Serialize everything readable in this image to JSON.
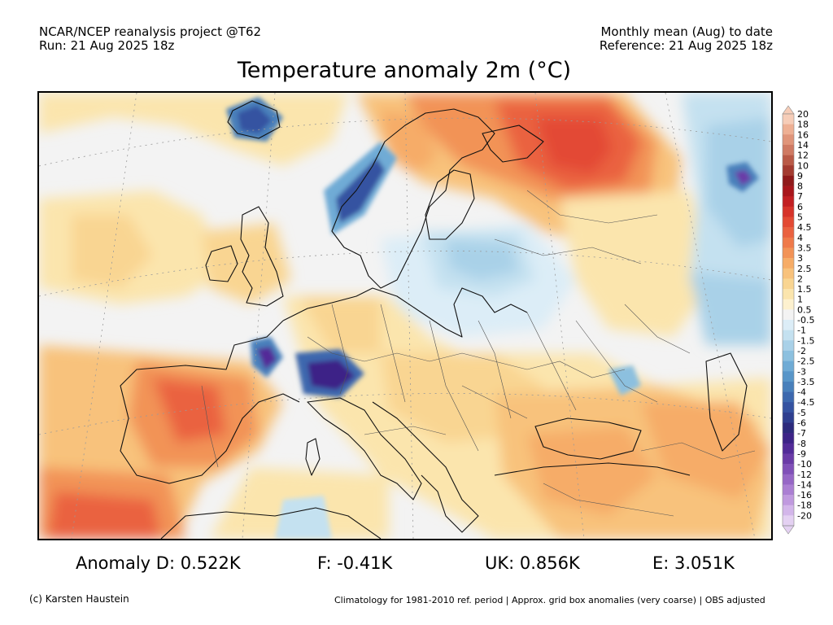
{
  "header": {
    "left_line1": "NCAR/NCEP reanalysis project @T62",
    "left_line2": "Run: 21 Aug 2025 18z",
    "right_line1": "Monthly mean (Aug) to date",
    "right_line2": "Reference: 21 Aug 2025 18z"
  },
  "title": "Temperature anomaly 2m (°C)",
  "legend": {
    "labels": [
      "20",
      "18",
      "16",
      "14",
      "12",
      "10",
      "9",
      "8",
      "7",
      "6",
      "5",
      "4.5",
      "4",
      "3.5",
      "3",
      "2.5",
      "2",
      "1.5",
      "1",
      "0.5",
      "-0.5",
      "-1",
      "-1.5",
      "-2",
      "-2.5",
      "-3",
      "-3.5",
      "-4",
      "-4.5",
      "-5",
      "-6",
      "-7",
      "-8",
      "-9",
      "-10",
      "-12",
      "-14",
      "-16",
      "-18",
      "-20"
    ],
    "colors": [
      "#f6cdb8",
      "#eeb094",
      "#e0957a",
      "#cf7a63",
      "#b95a47",
      "#a33b30",
      "#8f1a1a",
      "#a8161b",
      "#c21f22",
      "#d6332a",
      "#e34a34",
      "#ea6240",
      "#ef7a4a",
      "#f29357",
      "#f6ac67",
      "#f8c27c",
      "#f9d592",
      "#fbe5ad",
      "#fdf1cf",
      "#f3f3f3",
      "#dcedf7",
      "#c4e1f0",
      "#a9d1e8",
      "#8cc0df",
      "#6fabd5",
      "#5896c9",
      "#4880bb",
      "#3c68ae",
      "#3452a1",
      "#2e3e8f",
      "#2c2a7c",
      "#3c2387",
      "#522b98",
      "#6a3ba7",
      "#8050b8",
      "#9667c6",
      "#ab7fd3",
      "#c09adf",
      "#d3b6ea",
      "#e4d1f2"
    ]
  },
  "stats": {
    "anomaly_d": "Anomaly D: 0.522K",
    "f": "F: -0.41K",
    "uk": "UK: 0.856K",
    "e": "E: 3.051K"
  },
  "footer": {
    "left": "(c) Karsten Haustein",
    "right": "Climatology for 1981-2010 ref. period | Approx. grid box anomalies (very coarse) | OBS adjusted"
  }
}
